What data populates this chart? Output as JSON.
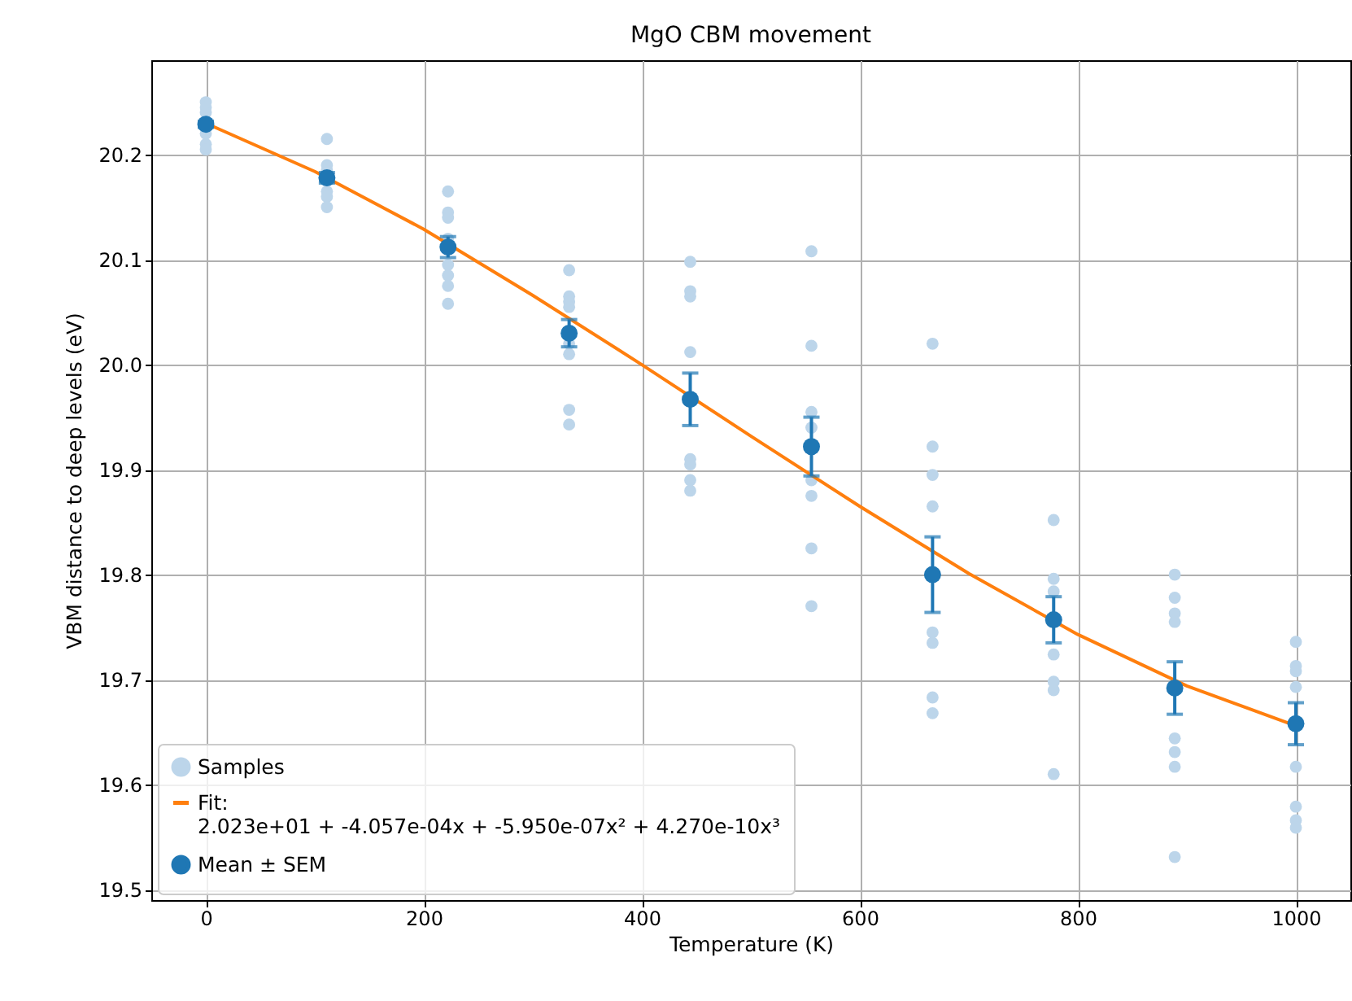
{
  "chart_data": {
    "type": "scatter",
    "title": "MgO CBM movement",
    "xlabel": "Temperature (K)",
    "ylabel": "VBM distance to deep levels (eV)",
    "xlim": [
      -50,
      1050
    ],
    "xticks": [
      0,
      200,
      400,
      600,
      800,
      1000
    ],
    "ylim": [
      19.49,
      20.29
    ],
    "yticks": [
      19.5,
      19.6,
      19.7,
      19.8,
      19.9,
      {
        "value": 20,
        "label": "20.0"
      },
      20.1,
      20.2
    ],
    "grid": true,
    "legend": "bottom left",
    "series": [
      {
        "name": "Samples",
        "color": "#bcd5ea",
        "marker": "circle",
        "x": [
          0,
          0,
          0,
          0,
          0,
          0,
          111.1,
          111.1,
          111.1,
          111.1,
          111.1,
          111.1,
          222.2,
          222.2,
          222.2,
          222.2,
          222.2,
          222.2,
          222.2,
          222.2,
          333.3,
          333.3,
          333.3,
          333.3,
          333.3,
          333.3,
          333.3,
          333.3,
          444.4,
          444.4,
          444.4,
          444.4,
          444.4,
          444.4,
          444.4,
          444.4,
          555.6,
          555.6,
          555.6,
          555.6,
          555.6,
          555.6,
          555.6,
          555.6,
          666.7,
          666.7,
          666.7,
          666.7,
          666.7,
          666.7,
          666.7,
          666.7,
          777.8,
          777.8,
          777.8,
          777.8,
          777.8,
          777.8,
          777.8,
          888.9,
          888.9,
          888.9,
          888.9,
          888.9,
          888.9,
          888.9,
          888.9,
          1000,
          1000,
          1000,
          1000,
          1000,
          1000,
          1000,
          1000
        ],
        "values": [
          20.25,
          20.245,
          20.24,
          20.22,
          20.21,
          20.205,
          20.215,
          20.19,
          20.185,
          20.165,
          20.16,
          20.15,
          20.165,
          20.145,
          20.14,
          20.12,
          20.095,
          20.085,
          20.075,
          20.058,
          20.09,
          20.065,
          20.06,
          20.055,
          20.02,
          20.01,
          19.957,
          19.943,
          20.098,
          20.07,
          20.065,
          20.012,
          19.91,
          19.905,
          19.89,
          19.88,
          20.108,
          20.018,
          19.955,
          19.94,
          19.89,
          19.875,
          19.825,
          19.77,
          20.02,
          19.922,
          19.895,
          19.865,
          19.745,
          19.735,
          19.683,
          19.668,
          19.852,
          19.796,
          19.784,
          19.724,
          19.698,
          19.69,
          19.61,
          19.8,
          19.778,
          19.763,
          19.755,
          19.644,
          19.631,
          19.617,
          19.531,
          19.736,
          19.713,
          19.708,
          19.693,
          19.617,
          19.579,
          19.566,
          19.559
        ]
      },
      {
        "name": "Fit:\n2.023e+01 + -4.057e-04x + -5.950e-07x² + 4.270e-10x³",
        "type": "line",
        "color": "#ff7f0e",
        "x": [
          0,
          100,
          200,
          300,
          400,
          500,
          600,
          700,
          800,
          900,
          1000
        ],
        "values": [
          20.23,
          20.184,
          20.129,
          20.066,
          20.0,
          19.932,
          19.865,
          19.801,
          19.743,
          19.694,
          19.656
        ]
      },
      {
        "name": "Mean ± SEM",
        "color": "#1f77b4",
        "marker": "circle",
        "x": [
          0,
          111.1,
          222.2,
          333.3,
          444.4,
          555.6,
          666.7,
          777.8,
          888.9,
          1000
        ],
        "values": [
          20.229,
          20.178,
          20.112,
          20.03,
          19.967,
          19.922,
          19.8,
          19.757,
          19.692,
          19.658
        ],
        "errors": [
          0.003,
          0.005,
          0.01,
          0.013,
          0.025,
          0.028,
          0.036,
          0.022,
          0.025,
          0.02
        ]
      }
    ]
  }
}
